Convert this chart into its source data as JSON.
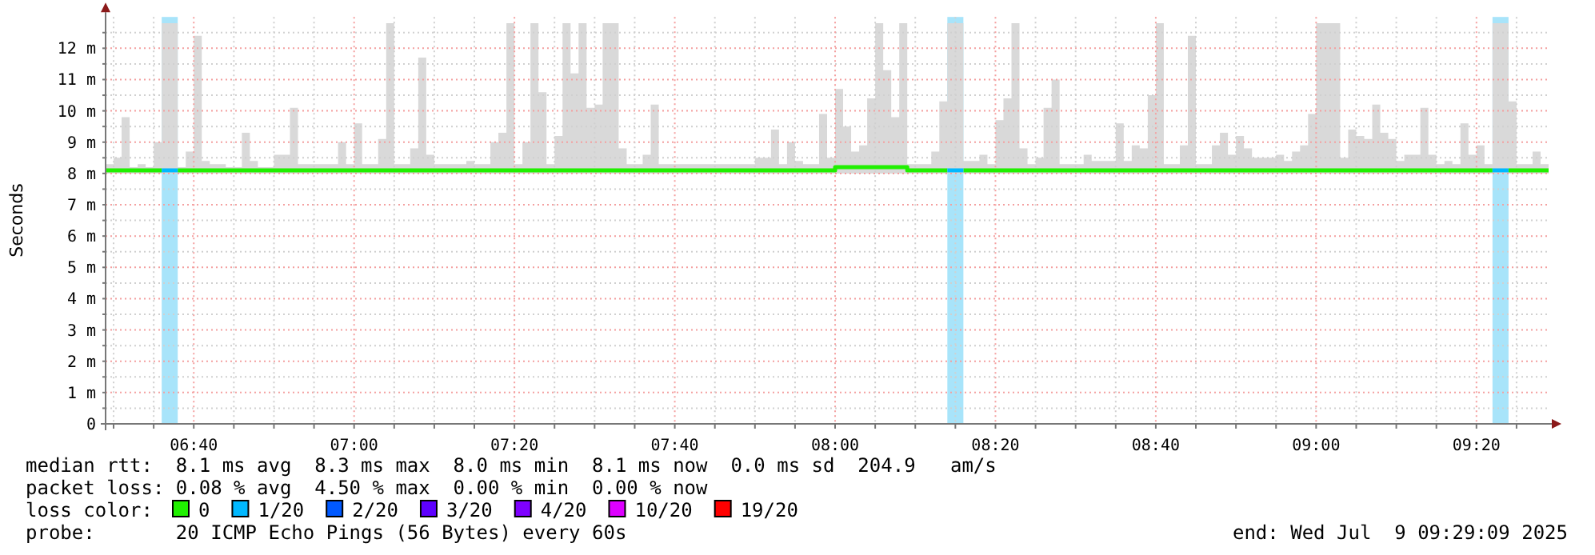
{
  "chart_data": {
    "type": "step",
    "ylabel": "Seconds",
    "legend_title": "loss color:",
    "legend": "bottom",
    "grid": true,
    "xlim": [
      "2025-07-09T06:29",
      "2025-07-09T09:29"
    ],
    "xticks": [
      {
        "value": "2025-07-09T06:30",
        "label": null
      },
      {
        "value": "2025-07-09T06:35",
        "label": null
      },
      {
        "value": "2025-07-09T06:40",
        "label": "06:40"
      },
      {
        "value": "2025-07-09T06:45",
        "label": null
      },
      {
        "value": "2025-07-09T06:50",
        "label": null
      },
      {
        "value": "2025-07-09T06:55",
        "label": null
      },
      {
        "value": "2025-07-09T07:00",
        "label": "07:00"
      },
      {
        "value": "2025-07-09T07:05",
        "label": null
      },
      {
        "value": "2025-07-09T07:10",
        "label": null
      },
      {
        "value": "2025-07-09T07:15",
        "label": null
      },
      {
        "value": "2025-07-09T07:20",
        "label": "07:20"
      },
      {
        "value": "2025-07-09T07:25",
        "label": null
      },
      {
        "value": "2025-07-09T07:30",
        "label": null
      },
      {
        "value": "2025-07-09T07:35",
        "label": null
      },
      {
        "value": "2025-07-09T07:40",
        "label": "07:40"
      },
      {
        "value": "2025-07-09T07:45",
        "label": null
      },
      {
        "value": "2025-07-09T07:50",
        "label": null
      },
      {
        "value": "2025-07-09T07:55",
        "label": null
      },
      {
        "value": "2025-07-09T08:00",
        "label": "08:00"
      },
      {
        "value": "2025-07-09T08:05",
        "label": null
      },
      {
        "value": "2025-07-09T08:10",
        "label": null
      },
      {
        "value": "2025-07-09T08:15",
        "label": null
      },
      {
        "value": "2025-07-09T08:20",
        "label": "08:20"
      },
      {
        "value": "2025-07-09T08:25",
        "label": null
      },
      {
        "value": "2025-07-09T08:30",
        "label": null
      },
      {
        "value": "2025-07-09T08:35",
        "label": null
      },
      {
        "value": "2025-07-09T08:40",
        "label": "08:40"
      },
      {
        "value": "2025-07-09T08:45",
        "label": null
      },
      {
        "value": "2025-07-09T08:50",
        "label": null
      },
      {
        "value": "2025-07-09T08:55",
        "label": null
      },
      {
        "value": "2025-07-09T09:00",
        "label": "09:00"
      },
      {
        "value": "2025-07-09T09:05",
        "label": null
      },
      {
        "value": "2025-07-09T09:10",
        "label": null
      },
      {
        "value": "2025-07-09T09:15",
        "label": null
      },
      {
        "value": "2025-07-09T09:20",
        "label": "09:20"
      },
      {
        "value": "2025-07-09T09:25",
        "label": null
      }
    ],
    "ylim": [
      0,
      13
    ],
    "yticks": [
      0,
      {
        "value": 0.5,
        "label": null
      },
      {
        "value": 1,
        "label": "1 m"
      },
      {
        "value": 1.5,
        "label": null
      },
      {
        "value": 2,
        "label": "2 m"
      },
      {
        "value": 2.5,
        "label": null
      },
      {
        "value": 3,
        "label": "3 m"
      },
      {
        "value": 3.5,
        "label": null
      },
      {
        "value": 4,
        "label": "4 m"
      },
      {
        "value": 4.5,
        "label": null
      },
      {
        "value": 5,
        "label": "5 m"
      },
      {
        "value": 5.5,
        "label": null
      },
      {
        "value": 6,
        "label": "6 m"
      },
      {
        "value": 6.5,
        "label": null
      },
      {
        "value": 7,
        "label": "7 m"
      },
      {
        "value": 7.5,
        "label": null
      },
      {
        "value": 8,
        "label": "8 m"
      },
      {
        "value": 8.5,
        "label": null
      },
      {
        "value": 9,
        "label": "9 m"
      },
      {
        "value": 9.5,
        "label": null
      },
      {
        "value": 10,
        "label": "10 m"
      },
      {
        "value": 10.5,
        "label": null
      },
      {
        "value": 11,
        "label": "11 m"
      },
      {
        "value": 11.5,
        "label": null
      },
      {
        "value": 12,
        "label": "12 m"
      },
      {
        "value": 12.5,
        "label": null
      }
    ],
    "x": [
      "2025-07-09T06:29",
      "2025-07-09T06:30",
      "2025-07-09T06:31",
      "2025-07-09T06:32",
      "2025-07-09T06:33",
      "2025-07-09T06:34",
      "2025-07-09T06:35",
      "2025-07-09T06:36",
      "2025-07-09T06:37",
      "2025-07-09T06:38",
      "2025-07-09T06:39",
      "2025-07-09T06:40",
      "2025-07-09T06:41",
      "2025-07-09T06:42",
      "2025-07-09T06:44",
      "2025-07-09T06:46",
      "2025-07-09T06:47",
      "2025-07-09T06:48",
      "2025-07-09T06:50",
      "2025-07-09T06:52",
      "2025-07-09T06:53",
      "2025-07-09T06:58",
      "2025-07-09T06:59",
      "2025-07-09T07:00",
      "2025-07-09T07:01",
      "2025-07-09T07:03",
      "2025-07-09T07:04",
      "2025-07-09T07:05",
      "2025-07-09T07:07",
      "2025-07-09T07:08",
      "2025-07-09T07:09",
      "2025-07-09T07:10",
      "2025-07-09T07:14",
      "2025-07-09T07:15",
      "2025-07-09T07:17",
      "2025-07-09T07:18",
      "2025-07-09T07:19",
      "2025-07-09T07:20",
      "2025-07-09T07:21",
      "2025-07-09T07:22",
      "2025-07-09T07:23",
      "2025-07-09T07:24",
      "2025-07-09T07:25",
      "2025-07-09T07:26",
      "2025-07-09T07:27",
      "2025-07-09T07:28",
      "2025-07-09T07:29",
      "2025-07-09T07:30",
      "2025-07-09T07:31",
      "2025-07-09T07:32",
      "2025-07-09T07:33",
      "2025-07-09T07:34",
      "2025-07-09T07:36",
      "2025-07-09T07:37",
      "2025-07-09T07:38",
      "2025-07-09T07:50",
      "2025-07-09T07:52",
      "2025-07-09T07:53",
      "2025-07-09T07:54",
      "2025-07-09T07:55",
      "2025-07-09T07:56",
      "2025-07-09T07:58",
      "2025-07-09T07:59",
      "2025-07-09T08:00",
      "2025-07-09T08:01",
      "2025-07-09T08:02",
      "2025-07-09T08:03",
      "2025-07-09T08:04",
      "2025-07-09T08:05",
      "2025-07-09T08:06",
      "2025-07-09T08:07",
      "2025-07-09T08:08",
      "2025-07-09T08:09",
      "2025-07-09T08:11",
      "2025-07-09T08:12",
      "2025-07-09T08:13",
      "2025-07-09T08:14",
      "2025-07-09T08:15",
      "2025-07-09T08:16",
      "2025-07-09T08:18",
      "2025-07-09T08:19",
      "2025-07-09T08:20",
      "2025-07-09T08:21",
      "2025-07-09T08:22",
      "2025-07-09T08:23",
      "2025-07-09T08:24",
      "2025-07-09T08:25",
      "2025-07-09T08:26",
      "2025-07-09T08:27",
      "2025-07-09T08:28",
      "2025-07-09T08:31",
      "2025-07-09T08:32",
      "2025-07-09T08:35",
      "2025-07-09T08:36",
      "2025-07-09T08:37",
      "2025-07-09T08:38",
      "2025-07-09T08:39",
      "2025-07-09T08:40",
      "2025-07-09T08:41",
      "2025-07-09T08:43",
      "2025-07-09T08:44",
      "2025-07-09T08:45",
      "2025-07-09T08:47",
      "2025-07-09T08:48",
      "2025-07-09T08:49",
      "2025-07-09T08:50",
      "2025-07-09T08:51",
      "2025-07-09T08:52",
      "2025-07-09T08:55",
      "2025-07-09T08:56",
      "2025-07-09T08:57",
      "2025-07-09T08:58",
      "2025-07-09T08:59",
      "2025-07-09T09:00",
      "2025-07-09T09:01",
      "2025-07-09T09:02",
      "2025-07-09T09:03",
      "2025-07-09T09:04",
      "2025-07-09T09:05",
      "2025-07-09T09:06",
      "2025-07-09T09:07",
      "2025-07-09T09:08",
      "2025-07-09T09:09",
      "2025-07-09T09:10",
      "2025-07-09T09:11",
      "2025-07-09T09:12",
      "2025-07-09T09:13",
      "2025-07-09T09:14",
      "2025-07-09T09:15",
      "2025-07-09T09:16",
      "2025-07-09T09:17",
      "2025-07-09T09:18",
      "2025-07-09T09:19",
      "2025-07-09T09:20",
      "2025-07-09T09:21",
      "2025-07-09T09:22",
      "2025-07-09T09:23",
      "2025-07-09T09:24",
      "2025-07-09T09:25",
      "2025-07-09T09:27",
      "2025-07-09T09:28",
      "2025-07-09T09:29"
    ],
    "series": [
      {
        "name": "0",
        "color": "#20f000",
        "values": [
          8.1,
          8.1,
          8.1,
          8.1,
          8.1,
          8.1,
          8.1,
          8.1,
          null,
          8.1,
          8.1,
          8.1,
          8.1,
          8.1,
          8.1,
          8.1,
          8.1,
          8.1,
          8.1,
          8.1,
          8.1,
          8.1,
          8.1,
          8.1,
          8.1,
          8.1,
          8.1,
          8.1,
          8.1,
          8.1,
          8.1,
          8.1,
          8.1,
          8.1,
          8.1,
          8.1,
          8.1,
          8.1,
          8.1,
          8.1,
          8.1,
          8.1,
          8.1,
          8.1,
          8.1,
          8.1,
          8.1,
          8.1,
          8.1,
          8.1,
          8.1,
          8.1,
          8.1,
          8.1,
          8.1,
          8.1,
          8.1,
          8.1,
          8.1,
          8.1,
          8.1,
          8.1,
          8.1,
          8.2,
          8.2,
          8.2,
          8.2,
          8.2,
          8.2,
          8.2,
          8.2,
          8.2,
          8.1,
          8.1,
          8.1,
          8.1,
          8.1,
          null,
          8.1,
          8.1,
          8.1,
          8.1,
          8.1,
          8.1,
          8.1,
          8.1,
          8.1,
          8.1,
          8.1,
          8.1,
          8.1,
          8.1,
          8.1,
          8.1,
          8.1,
          8.1,
          8.1,
          8.1,
          8.1,
          8.1,
          8.1,
          8.1,
          8.1,
          8.1,
          8.1,
          8.1,
          8.1,
          8.1,
          8.1,
          8.1,
          8.1,
          8.1,
          8.1,
          8.1,
          8.1,
          8.1,
          8.1,
          8.1,
          8.1,
          8.1,
          8.1,
          8.1,
          8.1,
          8.1,
          8.1,
          8.1,
          8.1,
          8.1,
          8.1,
          8.1,
          8.1,
          8.1,
          8.1,
          8.1,
          8.1,
          8.1,
          null,
          8.1,
          8.1,
          8.1,
          8.1,
          8.1
        ],
        "lower": [
          8,
          8,
          8,
          8,
          8,
          8,
          8,
          8,
          8,
          8,
          8,
          8,
          8,
          8,
          8,
          8,
          8,
          8,
          8,
          8,
          8,
          8,
          8,
          8,
          8,
          8,
          8,
          8,
          8,
          8,
          8,
          8,
          8,
          8,
          8,
          8,
          8,
          8,
          8,
          8,
          8,
          8,
          8,
          8,
          8,
          8,
          8,
          8,
          8,
          8,
          8,
          8,
          8,
          8,
          8,
          8,
          8,
          8,
          8,
          8,
          8,
          8,
          8,
          8,
          8,
          8,
          8,
          8,
          8,
          8,
          8,
          8,
          8,
          8,
          8,
          8,
          8,
          8,
          8,
          8,
          8,
          8,
          8,
          8,
          8,
          8,
          8,
          8,
          8,
          8,
          8,
          8,
          8,
          8,
          8,
          8,
          8,
          8,
          8,
          8,
          8,
          8,
          8,
          8,
          8,
          8,
          8,
          8,
          8,
          8,
          8,
          8,
          8,
          8,
          8,
          8,
          8,
          8,
          8,
          8,
          8,
          8,
          8,
          8,
          8,
          8,
          8,
          8,
          8,
          8,
          8,
          8,
          8,
          8,
          8,
          8,
          8,
          8,
          8,
          8,
          8,
          8
        ],
        "upper": [
          8.3,
          8.5,
          9.8,
          8.2,
          8.3,
          8.2,
          9.0,
          12.8,
          12.8,
          8.2,
          8.7,
          12.4,
          8.4,
          8.3,
          8.2,
          9.3,
          8.4,
          8.2,
          8.6,
          10.1,
          8.3,
          9.0,
          8.3,
          9.6,
          8.3,
          9.1,
          12.8,
          8.3,
          8.8,
          11.7,
          8.6,
          8.3,
          8.4,
          8.3,
          9.0,
          9.3,
          12.8,
          8.3,
          9.0,
          12.8,
          10.6,
          8.3,
          9.2,
          12.8,
          11.2,
          12.8,
          10.1,
          10.2,
          12.8,
          12.8,
          8.8,
          8.3,
          8.6,
          10.2,
          8.3,
          8.5,
          9.4,
          8.3,
          9.0,
          8.4,
          8.3,
          9.9,
          8.5,
          10.7,
          9.5,
          8.7,
          8.9,
          10.4,
          12.8,
          11.3,
          9.8,
          12.8,
          8.3,
          8.3,
          8.7,
          10.3,
          12.8,
          12.8,
          8.4,
          8.6,
          8.3,
          9.7,
          10.4,
          12.8,
          8.8,
          8.3,
          8.5,
          10.1,
          11.0,
          8.3,
          8.6,
          8.4,
          9.6,
          8.4,
          8.9,
          8.8,
          10.5,
          12.8,
          8.3,
          8.9,
          12.4,
          8.3,
          8.9,
          9.3,
          8.6,
          9.2,
          8.8,
          8.5,
          8.6,
          8.4,
          8.7,
          8.9,
          9.9,
          12.8,
          12.8,
          12.8,
          8.5,
          9.4,
          9.2,
          9.1,
          10.2,
          9.3,
          9.1,
          8.4,
          8.6,
          8.6,
          10.1,
          8.6,
          8.3,
          8.4,
          8.3,
          9.6,
          8.6,
          8.9,
          8.3,
          12.8,
          12.8,
          10.3,
          8.3,
          8.7,
          8.3,
          8.3
        ]
      },
      {
        "name": "1/20",
        "color": "#00b8ff",
        "values": [
          null,
          null,
          null,
          null,
          null,
          null,
          null,
          8.1,
          8.1,
          8.1,
          null,
          null,
          null,
          null,
          null,
          null,
          null,
          null,
          null,
          null,
          null,
          null,
          null,
          null,
          null,
          null,
          null,
          null,
          null,
          null,
          null,
          null,
          null,
          null,
          null,
          null,
          null,
          null,
          null,
          null,
          null,
          null,
          null,
          null,
          null,
          null,
          null,
          null,
          null,
          null,
          null,
          null,
          null,
          null,
          null,
          null,
          null,
          null,
          null,
          null,
          null,
          null,
          null,
          null,
          null,
          null,
          null,
          null,
          null,
          null,
          null,
          null,
          null,
          null,
          null,
          null,
          8.1,
          8.1,
          8.1,
          null,
          null,
          null,
          null,
          null,
          null,
          null,
          null,
          null,
          null,
          null,
          null,
          null,
          null,
          null,
          null,
          null,
          null,
          null,
          null,
          null,
          null,
          null,
          null,
          null,
          null,
          null,
          null,
          null,
          null,
          null,
          null,
          null,
          null,
          null,
          null,
          null,
          null,
          null,
          null,
          null,
          null,
          null,
          null,
          null,
          null,
          null,
          null,
          null,
          null,
          null,
          null,
          null,
          null,
          null,
          null,
          8.1,
          8.1,
          8.1,
          null,
          null,
          null,
          null
        ]
      },
      {
        "name": "2/20",
        "color": "#0059ff",
        "values": [
          null,
          null,
          null,
          null,
          null,
          null,
          null,
          null,
          null,
          null,
          null,
          null,
          null,
          null,
          null,
          null,
          null,
          null,
          null,
          null,
          null,
          null,
          null,
          null,
          null,
          null,
          null,
          null,
          null,
          null,
          null,
          null,
          null,
          null,
          null,
          null,
          null,
          null,
          null,
          null,
          null,
          null,
          null,
          null,
          null,
          null,
          null,
          null,
          null,
          null,
          null,
          null,
          null,
          null,
          null,
          null,
          null,
          null,
          null,
          null,
          null,
          null,
          null,
          null,
          null,
          null,
          null,
          null,
          null,
          null,
          null,
          null,
          null,
          null,
          null,
          null,
          null,
          null,
          null,
          null,
          null,
          null,
          null,
          null,
          null,
          null,
          null,
          null,
          null,
          null,
          null,
          null,
          null,
          null,
          null,
          null,
          null,
          null,
          null,
          null,
          null,
          null,
          null,
          null,
          null,
          null,
          null,
          null,
          null,
          null,
          null,
          null,
          null,
          null,
          null,
          null,
          null,
          null,
          null,
          null,
          null,
          null,
          null,
          null,
          null,
          null,
          null,
          null,
          null,
          null,
          null,
          null,
          null,
          null,
          null,
          null,
          null,
          null,
          null,
          null,
          null,
          null
        ]
      },
      {
        "name": "3/20",
        "color": "#5e00ff",
        "values": [
          null,
          null,
          null,
          null,
          null,
          null,
          null,
          null,
          null,
          null,
          null,
          null,
          null,
          null,
          null,
          null,
          null,
          null,
          null,
          null,
          null,
          null,
          null,
          null,
          null,
          null,
          null,
          null,
          null,
          null,
          null,
          null,
          null,
          null,
          null,
          null,
          null,
          null,
          null,
          null,
          null,
          null,
          null,
          null,
          null,
          null,
          null,
          null,
          null,
          null,
          null,
          null,
          null,
          null,
          null,
          null,
          null,
          null,
          null,
          null,
          null,
          null,
          null,
          null,
          null,
          null,
          null,
          null,
          null,
          null,
          null,
          null,
          null,
          null,
          null,
          null,
          null,
          null,
          null,
          null,
          null,
          null,
          null,
          null,
          null,
          null,
          null,
          null,
          null,
          null,
          null,
          null,
          null,
          null,
          null,
          null,
          null,
          null,
          null,
          null,
          null,
          null,
          null,
          null,
          null,
          null,
          null,
          null,
          null,
          null,
          null,
          null,
          null,
          null,
          null,
          null,
          null,
          null,
          null,
          null,
          null,
          null,
          null,
          null,
          null,
          null,
          null,
          null,
          null,
          null,
          null,
          null,
          null,
          null,
          null,
          null,
          null,
          null,
          null,
          null,
          null,
          null
        ]
      },
      {
        "name": "4/20",
        "color": "#7e00ff",
        "values": [
          null,
          null,
          null,
          null,
          null,
          null,
          null,
          null,
          null,
          null,
          null,
          null,
          null,
          null,
          null,
          null,
          null,
          null,
          null,
          null,
          null,
          null,
          null,
          null,
          null,
          null,
          null,
          null,
          null,
          null,
          null,
          null,
          null,
          null,
          null,
          null,
          null,
          null,
          null,
          null,
          null,
          null,
          null,
          null,
          null,
          null,
          null,
          null,
          null,
          null,
          null,
          null,
          null,
          null,
          null,
          null,
          null,
          null,
          null,
          null,
          null,
          null,
          null,
          null,
          null,
          null,
          null,
          null,
          null,
          null,
          null,
          null,
          null,
          null,
          null,
          null,
          null,
          null,
          null,
          null,
          null,
          null,
          null,
          null,
          null,
          null,
          null,
          null,
          null,
          null,
          null,
          null,
          null,
          null,
          null,
          null,
          null,
          null,
          null,
          null,
          null,
          null,
          null,
          null,
          null,
          null,
          null,
          null,
          null,
          null,
          null,
          null,
          null,
          null,
          null,
          null,
          null,
          null,
          null,
          null,
          null,
          null,
          null,
          null,
          null,
          null,
          null,
          null,
          null,
          null,
          null,
          null,
          null,
          null,
          null,
          null,
          null,
          null,
          null,
          null,
          null,
          null
        ]
      },
      {
        "name": "10/20",
        "color": "#dd00ff",
        "values": [
          null,
          null,
          null,
          null,
          null,
          null,
          null,
          null,
          null,
          null,
          null,
          null,
          null,
          null,
          null,
          null,
          null,
          null,
          null,
          null,
          null,
          null,
          null,
          null,
          null,
          null,
          null,
          null,
          null,
          null,
          null,
          null,
          null,
          null,
          null,
          null,
          null,
          null,
          null,
          null,
          null,
          null,
          null,
          null,
          null,
          null,
          null,
          null,
          null,
          null,
          null,
          null,
          null,
          null,
          null,
          null,
          null,
          null,
          null,
          null,
          null,
          null,
          null,
          null,
          null,
          null,
          null,
          null,
          null,
          null,
          null,
          null,
          null,
          null,
          null,
          null,
          null,
          null,
          null,
          null,
          null,
          null,
          null,
          null,
          null,
          null,
          null,
          null,
          null,
          null,
          null,
          null,
          null,
          null,
          null,
          null,
          null,
          null,
          null,
          null,
          null,
          null,
          null,
          null,
          null,
          null,
          null,
          null,
          null,
          null,
          null,
          null,
          null,
          null,
          null,
          null,
          null,
          null,
          null,
          null,
          null,
          null,
          null,
          null,
          null,
          null,
          null,
          null,
          null,
          null,
          null,
          null,
          null,
          null,
          null,
          null,
          null,
          null,
          null,
          null,
          null,
          null
        ]
      },
      {
        "name": "19/20",
        "color": "#ff0000",
        "values": [
          null,
          null,
          null,
          null,
          null,
          null,
          null,
          null,
          null,
          null,
          null,
          null,
          null,
          null,
          null,
          null,
          null,
          null,
          null,
          null,
          null,
          null,
          null,
          null,
          null,
          null,
          null,
          null,
          null,
          null,
          null,
          null,
          null,
          null,
          null,
          null,
          null,
          null,
          null,
          null,
          null,
          null,
          null,
          null,
          null,
          null,
          null,
          null,
          null,
          null,
          null,
          null,
          null,
          null,
          null,
          null,
          null,
          null,
          null,
          null,
          null,
          null,
          null,
          null,
          null,
          null,
          null,
          null,
          null,
          null,
          null,
          null,
          null,
          null,
          null,
          null,
          null,
          null,
          null,
          null,
          null,
          null,
          null,
          null,
          null,
          null,
          null,
          null,
          null,
          null,
          null,
          null,
          null,
          null,
          null,
          null,
          null,
          null,
          null,
          null,
          null,
          null,
          null,
          null,
          null,
          null,
          null,
          null,
          null,
          null,
          null,
          null,
          null,
          null,
          null,
          null,
          null,
          null,
          null,
          null,
          null,
          null,
          null,
          null,
          null,
          null,
          null,
          null,
          null,
          null,
          null,
          null,
          null,
          null,
          null,
          null,
          null,
          null,
          null,
          null,
          null,
          null
        ]
      }
    ],
    "bands": [
      {
        "axis": "x",
        "from": "2025-07-09T06:36",
        "to": "2025-07-09T06:38",
        "color": "#a8e4fa"
      },
      {
        "axis": "x",
        "from": "2025-07-09T08:14",
        "to": "2025-07-09T08:16",
        "color": "#a8e4fa"
      },
      {
        "axis": "x",
        "from": "2025-07-09T09:22",
        "to": "2025-07-09T09:24",
        "color": "#a8e4fa"
      }
    ],
    "annotations": [
      "median rtt:  8.1 ms avg  8.3 ms max  8.0 ms min  8.1 ms now  0.0 ms sd  204.9   am/s",
      "packet loss: 0.08 % avg  4.50 % max  0.00 % min  0.00 % now",
      "probe:       20 ICMP Echo Pings (56 Bytes) every 60s",
      "end: Wed Jul  9 09:29:09 2025"
    ]
  }
}
